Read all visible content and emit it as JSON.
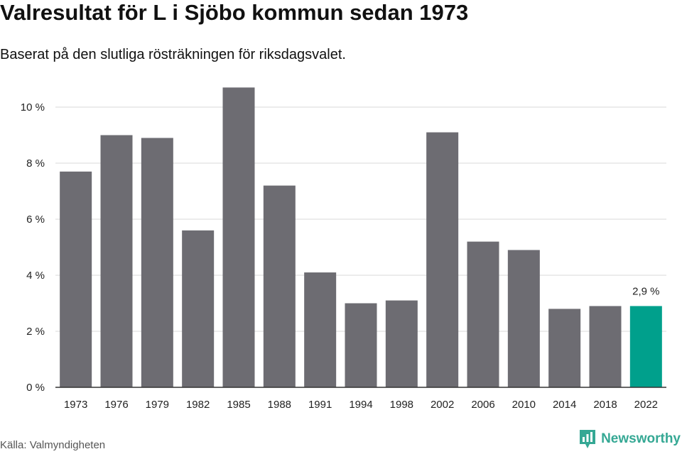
{
  "header": {
    "title": "Valresultat för L i Sjöbo kommun sedan 1973",
    "subtitle": "Baserat på den slutliga rösträkningen för riksdagsvalet."
  },
  "footer": {
    "source": "Källa: Valmyndigheten",
    "brand": "Newsworthy"
  },
  "colors": {
    "bar": "#6d6c72",
    "highlight": "#00a08c",
    "grid": "#d9d9d9",
    "axis": "#333333",
    "brand": "#35a894"
  },
  "chart_data": {
    "type": "bar",
    "title": "Valresultat för L i Sjöbo kommun sedan 1973",
    "subtitle": "Baserat på den slutliga rösträkningen för riksdagsvalet.",
    "categories": [
      "1973",
      "1976",
      "1979",
      "1982",
      "1985",
      "1988",
      "1991",
      "1994",
      "1998",
      "2002",
      "2006",
      "2010",
      "2014",
      "2018",
      "2022"
    ],
    "values": [
      7.7,
      9.0,
      8.9,
      5.6,
      10.7,
      7.2,
      4.1,
      3.0,
      3.1,
      9.1,
      5.2,
      4.9,
      2.8,
      2.9,
      2.9
    ],
    "ylim": [
      0,
      10
    ],
    "yticks": [
      0,
      2,
      4,
      6,
      8,
      10
    ],
    "ytick_labels": [
      "0 %",
      "2 %",
      "4 %",
      "6 %",
      "8 %",
      "10 %"
    ],
    "highlight_index": 14,
    "data_labels": [
      {
        "index": 14,
        "text": "2,9 %"
      }
    ],
    "grid": true,
    "xlabel": "",
    "ylabel": ""
  }
}
